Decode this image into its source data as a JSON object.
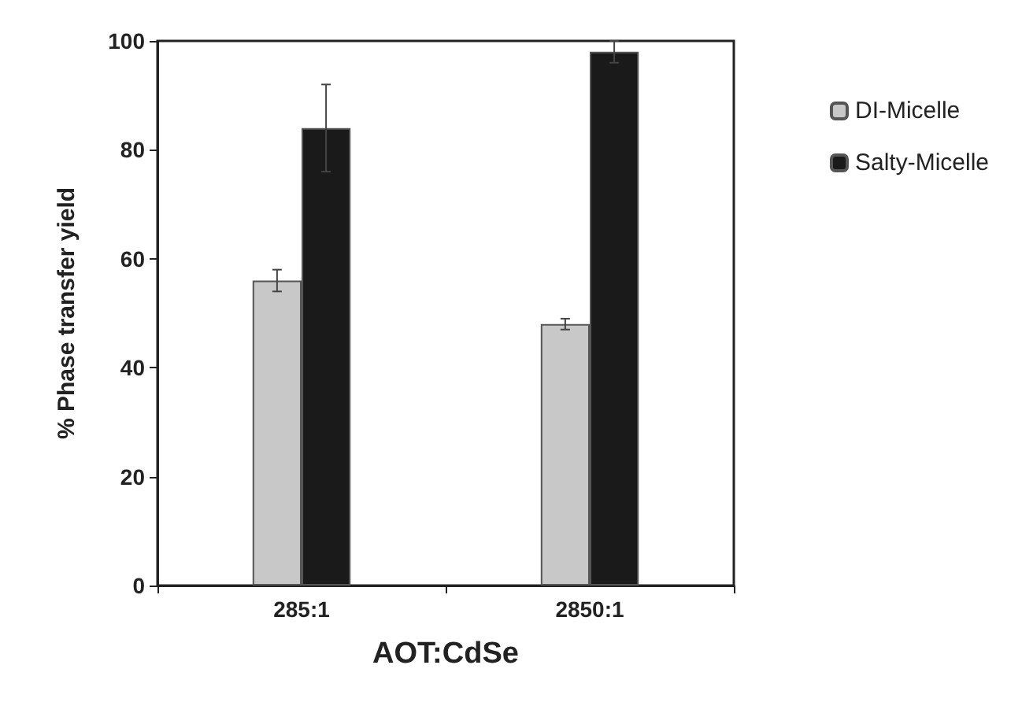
{
  "chart_data": {
    "type": "bar",
    "xlabel": "AOT:CdSe",
    "ylabel": "% Phase transfer yield",
    "categories": [
      "285:1",
      "2850:1"
    ],
    "series": [
      {
        "name": "DI-Micelle",
        "color": "#c8c8c8",
        "values": [
          56,
          48
        ],
        "errors": [
          2,
          1
        ]
      },
      {
        "name": "Salty-Micelle",
        "color": "#1a1a1a",
        "values": [
          84,
          98
        ],
        "errors": [
          8,
          2
        ]
      }
    ],
    "ylim": [
      0,
      100
    ],
    "yticks": [
      0,
      20,
      40,
      60,
      80,
      100
    ],
    "grid": false,
    "legend": "right"
  }
}
